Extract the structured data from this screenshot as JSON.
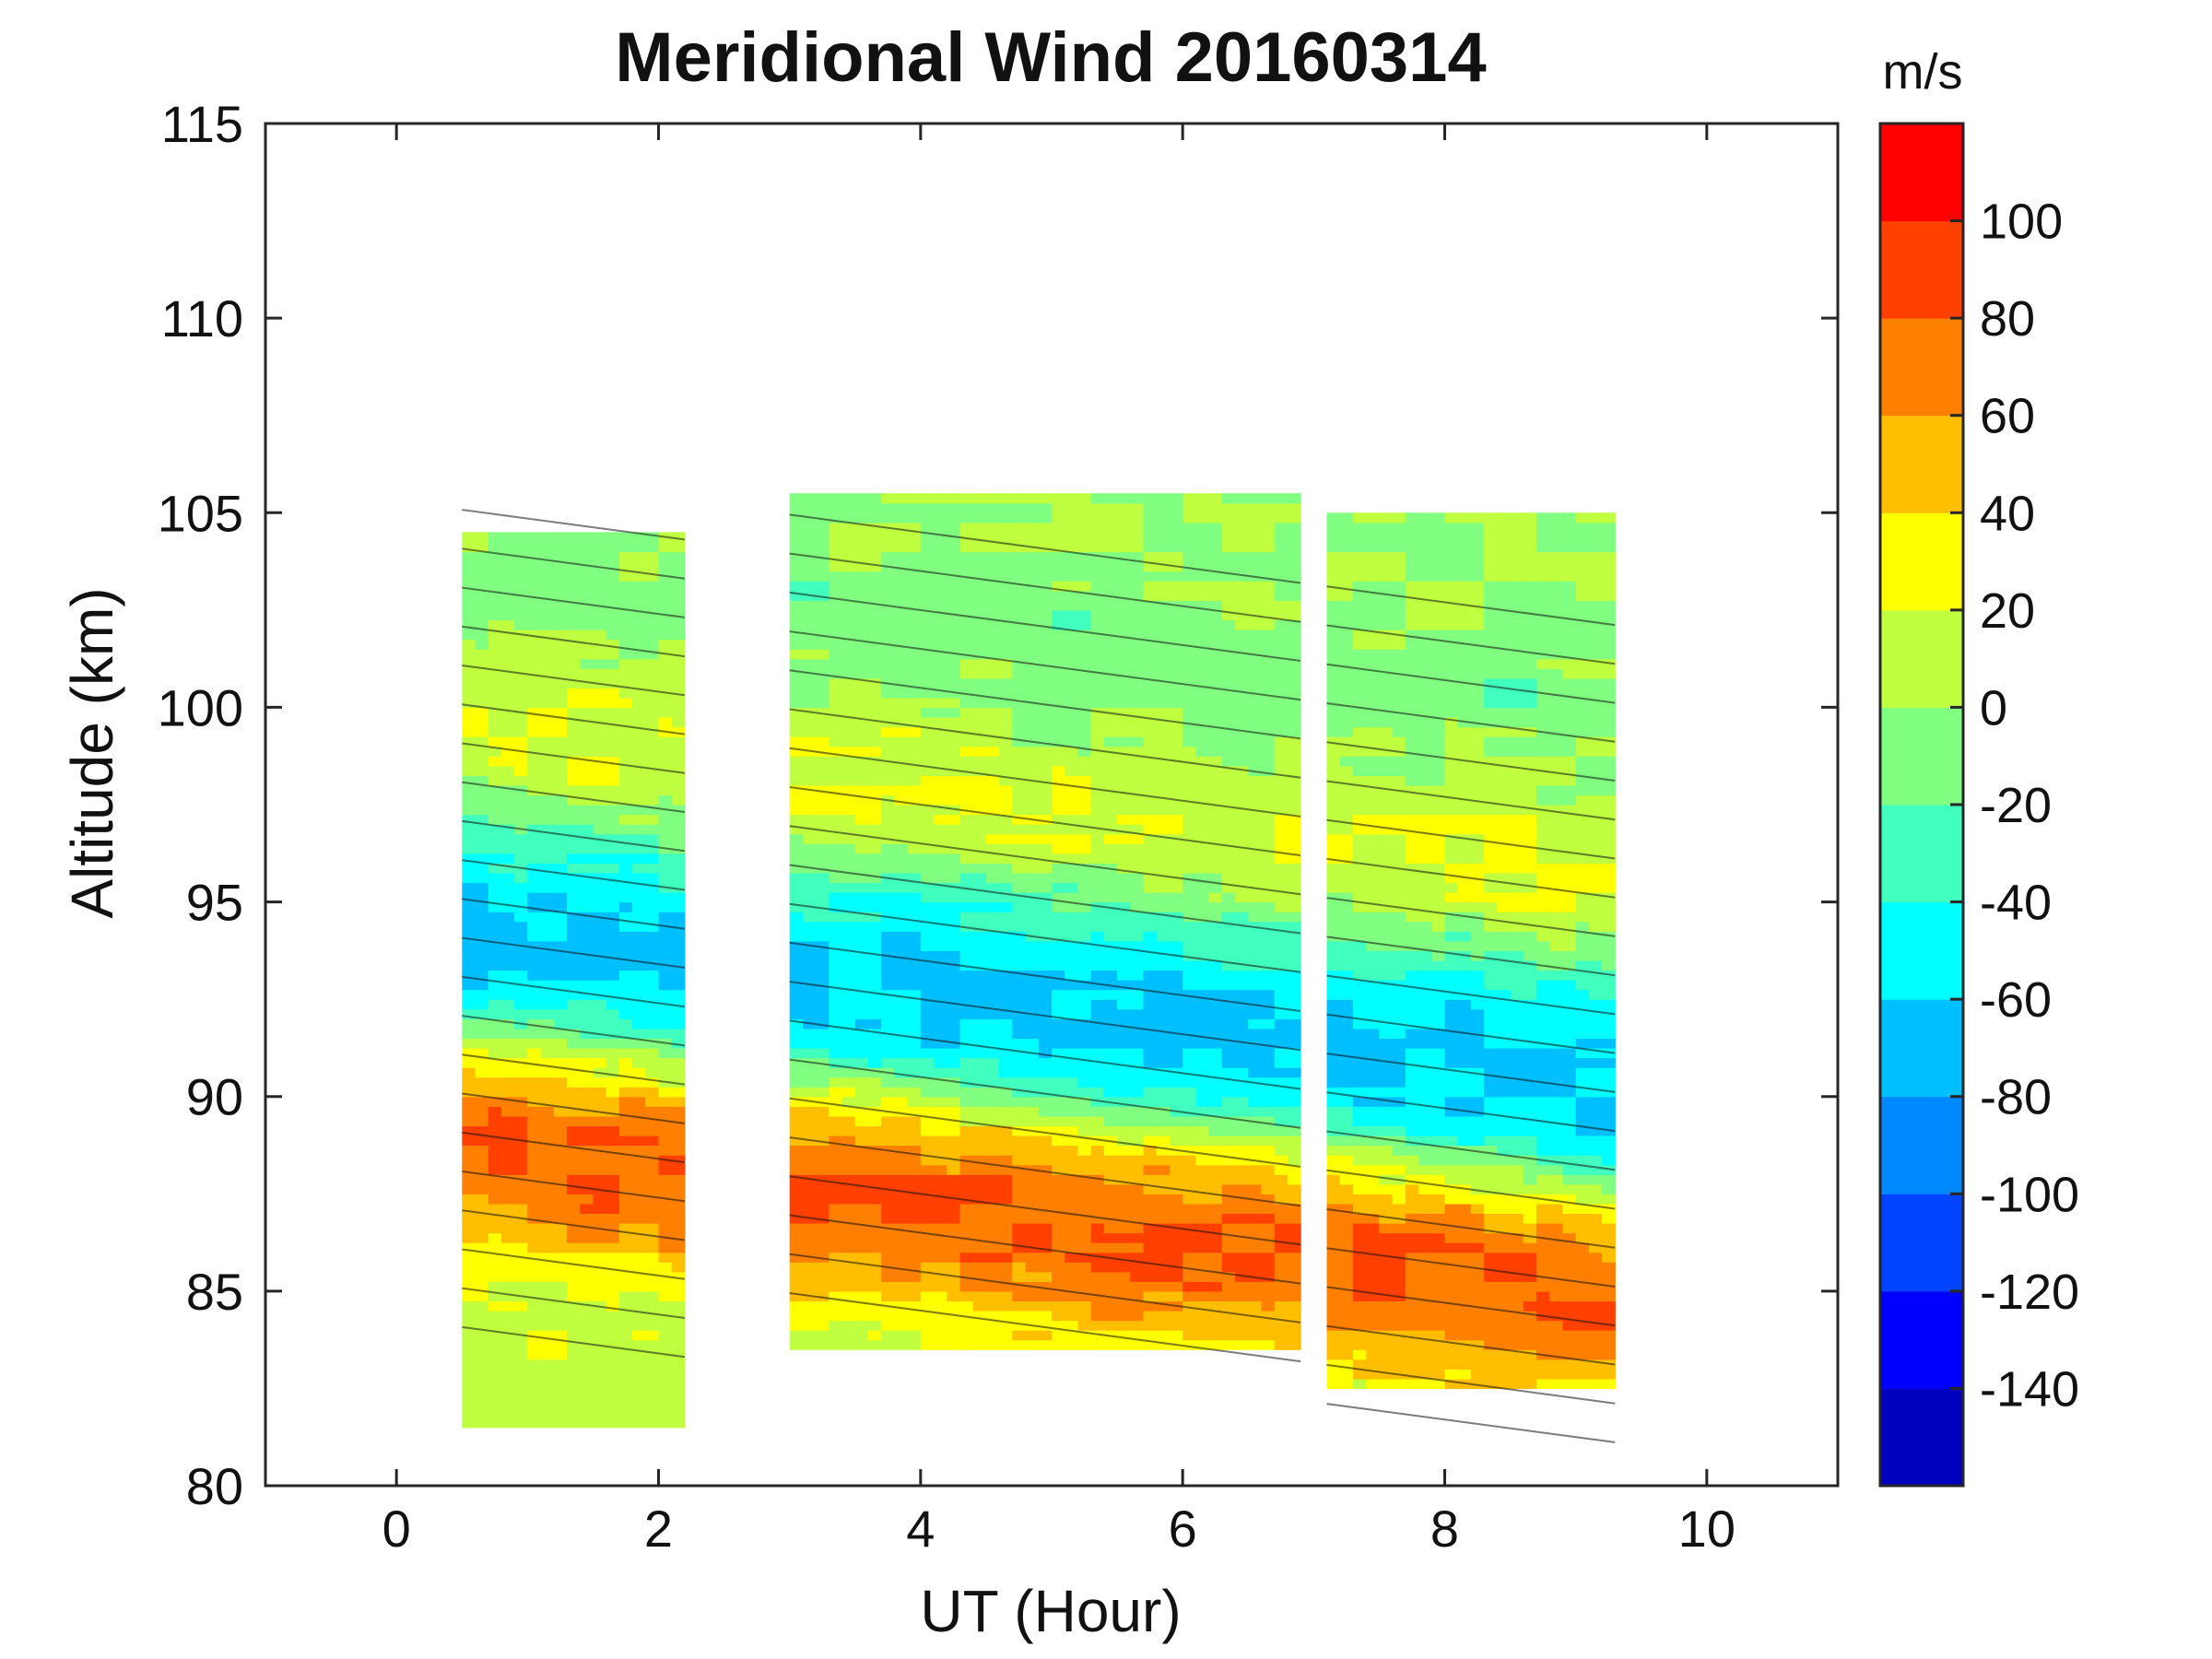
{
  "chart_data": {
    "type": "heatmap",
    "title": "Meridional Wind 20160314",
    "xlabel": "UT (Hour)",
    "ylabel": "Altitude (km)",
    "xlim": [
      -1,
      11
    ],
    "ylim": [
      80,
      115
    ],
    "xticks": [
      0,
      2,
      4,
      6,
      8,
      10
    ],
    "xtick_labels": [
      "0",
      "2",
      "4",
      "6",
      "8",
      "10"
    ],
    "yticks": [
      80,
      85,
      90,
      95,
      100,
      105,
      110,
      115
    ],
    "ytick_labels": [
      "80",
      "85",
      "90",
      "95",
      "100",
      "105",
      "110",
      "115"
    ],
    "colorbar": {
      "unit_label": "m/s",
      "range": [
        -160,
        120
      ],
      "levels": [
        -160,
        -140,
        -120,
        -100,
        -80,
        -60,
        -40,
        -20,
        0,
        20,
        40,
        60,
        80,
        100,
        120
      ],
      "colors": [
        "#0000bf",
        "#0000ff",
        "#0044ff",
        "#0088ff",
        "#00bfff",
        "#00ffff",
        "#40ffbf",
        "#80ff80",
        "#bfff40",
        "#ffff00",
        "#ffbf00",
        "#ff8000",
        "#ff4000",
        "#ff0000"
      ],
      "tick_values": [
        -140,
        -120,
        -100,
        -80,
        -60,
        -40,
        -20,
        0,
        20,
        40,
        60,
        80,
        100
      ],
      "tick_labels": [
        "-140",
        "-120",
        "-100",
        "-80",
        "-60",
        "-40",
        "-20",
        "0",
        "20",
        "40",
        "60",
        "80",
        "100"
      ]
    },
    "segments": [
      {
        "t_start": 0.5,
        "t_end": 2.2,
        "alt_bottom": 81.5,
        "alt_top": 104.5
      },
      {
        "t_start": 3.0,
        "t_end": 6.9,
        "alt_bottom": 83.5,
        "alt_top": 105.5
      },
      {
        "t_start": 7.1,
        "t_end": 9.3,
        "alt_bottom": 82.5,
        "alt_top": 105.0
      }
    ],
    "wind_profile": [
      {
        "altitude": 82,
        "wind": 10
      },
      {
        "altitude": 83,
        "wind": 15
      },
      {
        "altitude": 84,
        "wind": 25
      },
      {
        "altitude": 85,
        "wind": 50
      },
      {
        "altitude": 86,
        "wind": 70
      },
      {
        "altitude": 87,
        "wind": 80
      },
      {
        "altitude": 88,
        "wind": 75
      },
      {
        "altitude": 89,
        "wind": 50
      },
      {
        "altitude": 90,
        "wind": 5
      },
      {
        "altitude": 91,
        "wind": -45
      },
      {
        "altitude": 92,
        "wind": -65
      },
      {
        "altitude": 93,
        "wind": -65
      },
      {
        "altitude": 94,
        "wind": -55
      },
      {
        "altitude": 95,
        "wind": -35
      },
      {
        "altitude": 96,
        "wind": -10
      },
      {
        "altitude": 97,
        "wind": 15
      },
      {
        "altitude": 98,
        "wind": 20
      },
      {
        "altitude": 99,
        "wind": 15
      },
      {
        "altitude": 100,
        "wind": 5
      },
      {
        "altitude": 101,
        "wind": -5
      },
      {
        "altitude": 102,
        "wind": -10
      },
      {
        "altitude": 103,
        "wind": -10
      },
      {
        "altitude": 104,
        "wind": -5
      },
      {
        "altitude": 105,
        "wind": 0
      }
    ],
    "profile_tilt_km_per_hour": -0.45,
    "tilt_reference_hour": 4
  }
}
